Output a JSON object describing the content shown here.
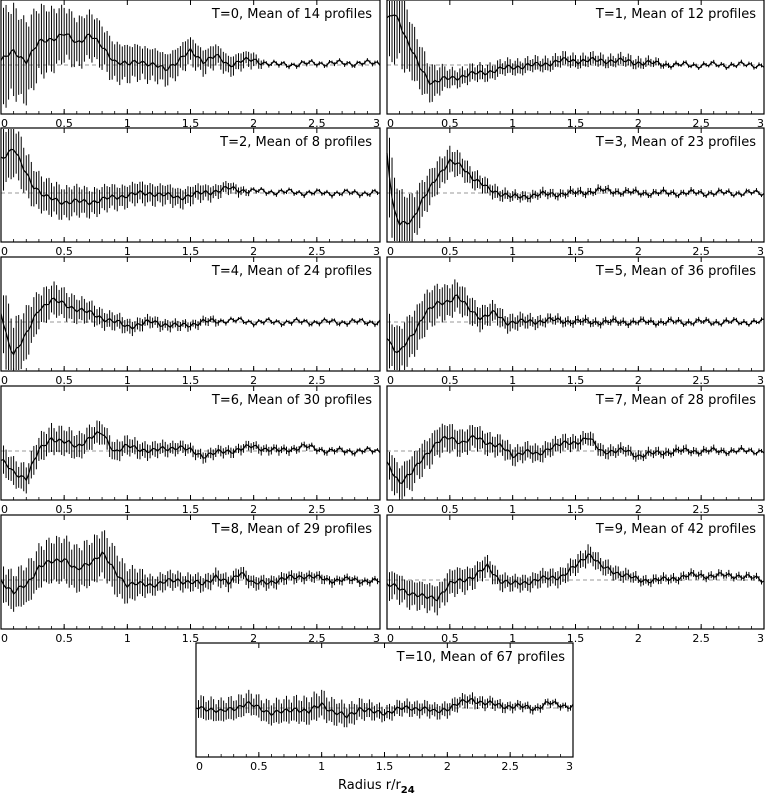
{
  "chart_data": {
    "type": "line",
    "xlabel": {
      "text": "Radius r/r",
      "subscript": "24"
    },
    "xlim": [
      0,
      3
    ],
    "xticks": [
      "0",
      "0.5",
      "1",
      "1.5",
      "2",
      "2.5",
      "3"
    ],
    "error_bars": true,
    "reference_line": "dashed",
    "panels": [
      {
        "title": "T=0, Mean of 14 profiles",
        "points": [
          [
            0,
            0.05
          ],
          [
            0.05,
            0.1
          ],
          [
            0.1,
            0.15
          ],
          [
            0.2,
            0.05
          ],
          [
            0.3,
            0.25
          ],
          [
            0.4,
            0.3
          ],
          [
            0.5,
            0.35
          ],
          [
            0.55,
            0.3
          ],
          [
            0.6,
            0.25
          ],
          [
            0.7,
            0.35
          ],
          [
            0.8,
            0.2
          ],
          [
            0.9,
            0.05
          ],
          [
            1.0,
            0.0
          ],
          [
            1.1,
            0.05
          ],
          [
            1.2,
            0.0
          ],
          [
            1.3,
            -0.05
          ],
          [
            1.4,
            0.05
          ],
          [
            1.5,
            0.15
          ],
          [
            1.6,
            0.05
          ],
          [
            1.7,
            0.1
          ],
          [
            1.8,
            0.0
          ],
          [
            1.9,
            0.05
          ],
          [
            2.0,
            0.05
          ],
          [
            2.2,
            0.0
          ],
          [
            2.5,
            0.02
          ],
          [
            3.0,
            0.02
          ]
        ],
        "err": [
          [
            0,
            0.55
          ],
          [
            0.5,
            0.3
          ],
          [
            1.0,
            0.2
          ],
          [
            1.5,
            0.15
          ],
          [
            2.0,
            0.08
          ],
          [
            2.1,
            0.02
          ],
          [
            3.0,
            0.02
          ]
        ]
      },
      {
        "title": "T=1, Mean of 12 profiles",
        "points": [
          [
            0,
            0.5
          ],
          [
            0.05,
            0.6
          ],
          [
            0.1,
            0.5
          ],
          [
            0.15,
            0.3
          ],
          [
            0.25,
            0.0
          ],
          [
            0.35,
            -0.2
          ],
          [
            0.5,
            -0.15
          ],
          [
            0.7,
            -0.1
          ],
          [
            0.9,
            -0.05
          ],
          [
            1.0,
            -0.02
          ],
          [
            1.2,
            0.0
          ],
          [
            1.4,
            0.05
          ],
          [
            1.6,
            0.05
          ],
          [
            1.8,
            0.05
          ],
          [
            2.0,
            0.03
          ],
          [
            2.3,
            0.0
          ],
          [
            2.6,
            0.0
          ],
          [
            3.0,
            0.0
          ]
        ],
        "err": [
          [
            0,
            0.6
          ],
          [
            0.2,
            0.3
          ],
          [
            0.5,
            0.1
          ],
          [
            1.0,
            0.08
          ],
          [
            2.0,
            0.06
          ],
          [
            2.3,
            0.02
          ],
          [
            3.0,
            0.02
          ]
        ]
      },
      {
        "title": "T=2, Mean of 8 profiles",
        "points": [
          [
            0,
            0.4
          ],
          [
            0.05,
            0.45
          ],
          [
            0.1,
            0.5
          ],
          [
            0.15,
            0.35
          ],
          [
            0.25,
            0.1
          ],
          [
            0.35,
            -0.05
          ],
          [
            0.5,
            -0.1
          ],
          [
            0.7,
            -0.1
          ],
          [
            0.9,
            -0.05
          ],
          [
            1.0,
            -0.02
          ],
          [
            1.2,
            0.0
          ],
          [
            1.4,
            -0.05
          ],
          [
            1.6,
            0.0
          ],
          [
            1.8,
            0.05
          ],
          [
            2.0,
            0.02
          ],
          [
            2.5,
            0.0
          ],
          [
            3.0,
            0.0
          ]
        ],
        "err": [
          [
            0,
            0.35
          ],
          [
            0.3,
            0.2
          ],
          [
            1.0,
            0.12
          ],
          [
            1.5,
            0.1
          ],
          [
            1.9,
            0.05
          ],
          [
            2.0,
            0.02
          ],
          [
            3.0,
            0.02
          ]
        ]
      },
      {
        "title": "T=3, Mean of 23 profiles",
        "points": [
          [
            0,
            0.45
          ],
          [
            0.05,
            -0.2
          ],
          [
            0.1,
            -0.35
          ],
          [
            0.2,
            -0.3
          ],
          [
            0.3,
            -0.05
          ],
          [
            0.4,
            0.2
          ],
          [
            0.5,
            0.35
          ],
          [
            0.6,
            0.3
          ],
          [
            0.7,
            0.15
          ],
          [
            0.8,
            0.05
          ],
          [
            0.9,
            0.0
          ],
          [
            1.0,
            -0.05
          ],
          [
            1.2,
            -0.02
          ],
          [
            1.5,
            0.0
          ],
          [
            1.7,
            0.03
          ],
          [
            2.0,
            0.0
          ],
          [
            2.5,
            0.0
          ],
          [
            3.0,
            0.0
          ]
        ],
        "err": [
          [
            0,
            0.45
          ],
          [
            0.3,
            0.2
          ],
          [
            0.7,
            0.1
          ],
          [
            1.0,
            0.05
          ],
          [
            2.0,
            0.03
          ],
          [
            3.0,
            0.02
          ]
        ]
      },
      {
        "title": "T=4, Mean of 24 profiles",
        "points": [
          [
            0,
            0.1
          ],
          [
            0.05,
            -0.2
          ],
          [
            0.1,
            -0.35
          ],
          [
            0.2,
            -0.15
          ],
          [
            0.3,
            0.15
          ],
          [
            0.4,
            0.25
          ],
          [
            0.5,
            0.2
          ],
          [
            0.6,
            0.15
          ],
          [
            0.7,
            0.1
          ],
          [
            0.8,
            0.05
          ],
          [
            0.9,
            0.0
          ],
          [
            1.0,
            -0.05
          ],
          [
            1.2,
            0.0
          ],
          [
            1.4,
            -0.05
          ],
          [
            1.6,
            0.0
          ],
          [
            1.8,
            0.02
          ],
          [
            2.0,
            0.0
          ],
          [
            2.5,
            0.0
          ],
          [
            3.0,
            0.0
          ]
        ],
        "err": [
          [
            0,
            0.45
          ],
          [
            0.3,
            0.2
          ],
          [
            0.8,
            0.1
          ],
          [
            1.2,
            0.06
          ],
          [
            1.7,
            0.04
          ],
          [
            1.75,
            0.02
          ],
          [
            3.0,
            0.02
          ]
        ]
      },
      {
        "title": "T=5, Mean of 36 profiles",
        "points": [
          [
            0,
            -0.15
          ],
          [
            0.05,
            -0.3
          ],
          [
            0.1,
            -0.35
          ],
          [
            0.2,
            -0.15
          ],
          [
            0.3,
            0.1
          ],
          [
            0.4,
            0.2
          ],
          [
            0.5,
            0.25
          ],
          [
            0.55,
            0.3
          ],
          [
            0.65,
            0.15
          ],
          [
            0.75,
            0.05
          ],
          [
            0.85,
            0.1
          ],
          [
            0.95,
            0.0
          ],
          [
            1.1,
            0.0
          ],
          [
            1.3,
            0.02
          ],
          [
            1.6,
            0.0
          ],
          [
            2.0,
            0.0
          ],
          [
            2.5,
            0.0
          ],
          [
            3.0,
            0.0
          ]
        ],
        "err": [
          [
            0,
            0.3
          ],
          [
            0.4,
            0.2
          ],
          [
            0.9,
            0.1
          ],
          [
            1.3,
            0.05
          ],
          [
            2.0,
            0.03
          ],
          [
            3.0,
            0.02
          ]
        ]
      },
      {
        "title": "T=6, Mean of 30 profiles",
        "points": [
          [
            0,
            -0.1
          ],
          [
            0.1,
            -0.25
          ],
          [
            0.2,
            -0.3
          ],
          [
            0.3,
            0.0
          ],
          [
            0.4,
            0.15
          ],
          [
            0.5,
            0.1
          ],
          [
            0.6,
            0.05
          ],
          [
            0.7,
            0.15
          ],
          [
            0.8,
            0.2
          ],
          [
            0.9,
            0.0
          ],
          [
            1.0,
            0.05
          ],
          [
            1.2,
            0.0
          ],
          [
            1.4,
            0.05
          ],
          [
            1.6,
            -0.05
          ],
          [
            1.8,
            0.0
          ],
          [
            2.0,
            0.05
          ],
          [
            2.2,
            0.0
          ],
          [
            2.4,
            0.05
          ],
          [
            2.6,
            0.0
          ],
          [
            3.0,
            0.0
          ]
        ],
        "err": [
          [
            0,
            0.15
          ],
          [
            0.5,
            0.15
          ],
          [
            1.0,
            0.1
          ],
          [
            1.5,
            0.06
          ],
          [
            2.0,
            0.05
          ],
          [
            2.5,
            0.03
          ],
          [
            3.0,
            0.02
          ]
        ]
      },
      {
        "title": "T=7, Mean of 28 profiles",
        "points": [
          [
            0,
            -0.15
          ],
          [
            0.1,
            -0.35
          ],
          [
            0.2,
            -0.25
          ],
          [
            0.3,
            -0.05
          ],
          [
            0.4,
            0.1
          ],
          [
            0.5,
            0.15
          ],
          [
            0.6,
            0.1
          ],
          [
            0.7,
            0.15
          ],
          [
            0.8,
            0.1
          ],
          [
            0.9,
            0.05
          ],
          [
            1.0,
            -0.05
          ],
          [
            1.1,
            0.0
          ],
          [
            1.2,
            -0.05
          ],
          [
            1.3,
            0.05
          ],
          [
            1.5,
            0.1
          ],
          [
            1.6,
            0.15
          ],
          [
            1.7,
            0.0
          ],
          [
            1.9,
            0.0
          ],
          [
            2.0,
            -0.05
          ],
          [
            2.3,
            0.0
          ],
          [
            2.6,
            0.0
          ],
          [
            3.0,
            0.0
          ]
        ],
        "err": [
          [
            0,
            0.2
          ],
          [
            0.5,
            0.15
          ],
          [
            1.0,
            0.1
          ],
          [
            1.5,
            0.08
          ],
          [
            2.0,
            0.05
          ],
          [
            3.0,
            0.02
          ]
        ]
      },
      {
        "title": "T=8, Mean of 29 profiles",
        "points": [
          [
            0,
            0.0
          ],
          [
            0.1,
            -0.15
          ],
          [
            0.2,
            -0.05
          ],
          [
            0.3,
            0.15
          ],
          [
            0.4,
            0.2
          ],
          [
            0.5,
            0.25
          ],
          [
            0.6,
            0.1
          ],
          [
            0.7,
            0.2
          ],
          [
            0.8,
            0.3
          ],
          [
            0.9,
            0.1
          ],
          [
            1.0,
            -0.05
          ],
          [
            1.2,
            -0.05
          ],
          [
            1.4,
            0.0
          ],
          [
            1.6,
            -0.05
          ],
          [
            1.7,
            0.05
          ],
          [
            1.8,
            -0.05
          ],
          [
            1.9,
            0.1
          ],
          [
            2.0,
            -0.05
          ],
          [
            2.2,
            0.0
          ],
          [
            2.4,
            0.05
          ],
          [
            2.6,
            0.0
          ],
          [
            2.8,
            0.0
          ],
          [
            3.0,
            -0.02
          ]
        ],
        "err": [
          [
            0,
            0.2
          ],
          [
            0.5,
            0.25
          ],
          [
            0.9,
            0.25
          ],
          [
            1.2,
            0.1
          ],
          [
            1.8,
            0.08
          ],
          [
            2.5,
            0.05
          ],
          [
            3.0,
            0.03
          ]
        ]
      },
      {
        "title": "T=9, Mean of 42 profiles",
        "points": [
          [
            0,
            -0.05
          ],
          [
            0.1,
            -0.1
          ],
          [
            0.2,
            -0.15
          ],
          [
            0.3,
            -0.2
          ],
          [
            0.4,
            -0.2
          ],
          [
            0.5,
            -0.05
          ],
          [
            0.6,
            0.0
          ],
          [
            0.7,
            0.05
          ],
          [
            0.8,
            0.15
          ],
          [
            0.9,
            0.0
          ],
          [
            1.0,
            -0.05
          ],
          [
            1.2,
            0.0
          ],
          [
            1.4,
            0.05
          ],
          [
            1.5,
            0.15
          ],
          [
            1.6,
            0.3
          ],
          [
            1.65,
            0.25
          ],
          [
            1.7,
            0.15
          ],
          [
            1.8,
            0.1
          ],
          [
            1.9,
            0.05
          ],
          [
            2.0,
            0.0
          ],
          [
            2.2,
            0.0
          ],
          [
            2.4,
            0.05
          ],
          [
            2.6,
            0.05
          ],
          [
            2.8,
            0.05
          ],
          [
            3.0,
            0.0
          ]
        ],
        "err": [
          [
            0,
            0.15
          ],
          [
            0.5,
            0.15
          ],
          [
            1.0,
            0.08
          ],
          [
            1.6,
            0.1
          ],
          [
            2.0,
            0.05
          ],
          [
            3.0,
            0.03
          ]
        ]
      },
      {
        "title": "T=10, Mean of 67 profiles",
        "points": [
          [
            0,
            0.0
          ],
          [
            0.1,
            0.0
          ],
          [
            0.2,
            -0.05
          ],
          [
            0.3,
            0.0
          ],
          [
            0.4,
            0.05
          ],
          [
            0.5,
            0.0
          ],
          [
            0.6,
            -0.05
          ],
          [
            0.7,
            -0.05
          ],
          [
            0.8,
            0.0
          ],
          [
            0.9,
            -0.05
          ],
          [
            1.0,
            0.05
          ],
          [
            1.1,
            -0.05
          ],
          [
            1.2,
            -0.1
          ],
          [
            1.3,
            0.0
          ],
          [
            1.4,
            -0.05
          ],
          [
            1.5,
            -0.05
          ],
          [
            1.6,
            -0.02
          ],
          [
            1.7,
            0.0
          ],
          [
            1.8,
            0.0
          ],
          [
            1.9,
            -0.05
          ],
          [
            2.0,
            0.0
          ],
          [
            2.1,
            0.05
          ],
          [
            2.2,
            0.1
          ],
          [
            2.3,
            0.05
          ],
          [
            2.5,
            0.02
          ],
          [
            2.7,
            0.0
          ],
          [
            2.8,
            0.05
          ],
          [
            3.0,
            0.02
          ]
        ],
        "err": [
          [
            0,
            0.12
          ],
          [
            0.5,
            0.12
          ],
          [
            1.0,
            0.15
          ],
          [
            1.5,
            0.08
          ],
          [
            2.0,
            0.08
          ],
          [
            2.5,
            0.05
          ],
          [
            3.0,
            0.03
          ]
        ]
      }
    ]
  }
}
